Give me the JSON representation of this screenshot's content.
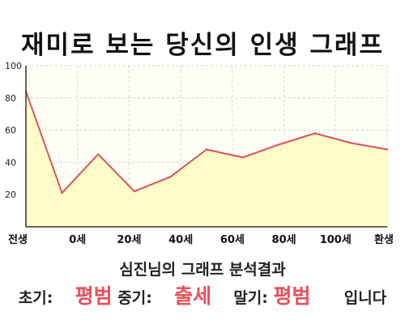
{
  "chart_data": {
    "type": "area",
    "title": "재미로 보는 당신의 인생 그래프",
    "x_tick_labels": [
      "전생",
      "0세",
      "20세",
      "40세",
      "60세",
      "80세",
      "100세",
      "환생"
    ],
    "y_ticks": [
      100,
      80,
      60,
      40,
      20
    ],
    "ylim": [
      0,
      100
    ],
    "grid": true,
    "series": [
      {
        "values": [
          84,
          21,
          45,
          22,
          31,
          48,
          43,
          51,
          58,
          52,
          48
        ]
      }
    ],
    "colors": {
      "line": "#d9535f",
      "fill": "#fffcc8",
      "plot_bg": "#fefef4",
      "grid": "#d6d6d6",
      "axis": "#333333"
    }
  },
  "result": {
    "heading": "심진님의 그래프 분석결과",
    "early_label": "초기:",
    "early_value": "평범",
    "middle_label": "중기:",
    "middle_value": "출세",
    "late_label": "말기:",
    "late_value": "평범",
    "suffix": "입니다",
    "highlight_color": "#e8505b"
  }
}
